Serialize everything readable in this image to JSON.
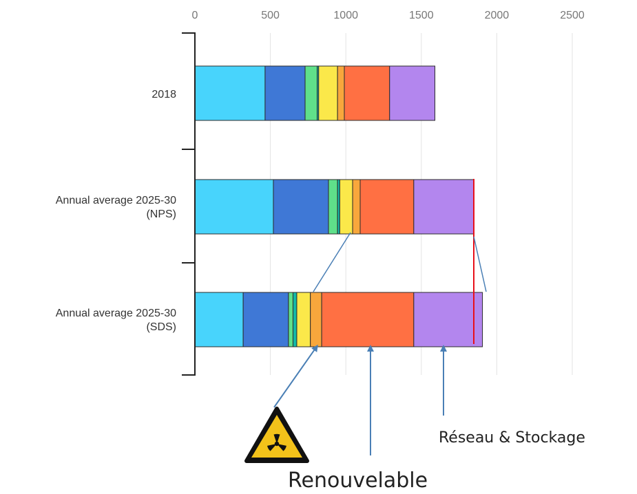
{
  "chart_data": {
    "type": "bar",
    "orientation": "horizontal",
    "stacked": true,
    "categories": [
      "2018",
      "Annual average 2025-30\n(NPS)",
      "Annual average 2025-30\n(SDS)"
    ],
    "xlim": [
      0,
      2500
    ],
    "xticks": [
      "0",
      "500",
      "1000",
      "1500",
      "2000",
      "2500"
    ],
    "grid": "vertical",
    "series": [
      {
        "color": "#48d4fc",
        "values": [
          465,
          520,
          320
        ]
      },
      {
        "color": "#3f78d6",
        "values": [
          265,
          365,
          300
        ]
      },
      {
        "color": "#5fe08a",
        "values": [
          80,
          60,
          30
        ]
      },
      {
        "color": "#14b8a6",
        "values": [
          10,
          15,
          25
        ]
      },
      {
        "color": "#fbe84a",
        "values": [
          125,
          85,
          90
        ]
      },
      {
        "color": "#f8a73c",
        "values": [
          45,
          50,
          75
        ]
      },
      {
        "color": "#ff7043",
        "values": [
          300,
          355,
          610
        ]
      },
      {
        "color": "#b386ee",
        "values": [
          300,
          400,
          455
        ]
      }
    ],
    "annotations": {
      "nuclear_icon": "radioactive-warning-icon",
      "renewable_label": "Renouvelable",
      "grid_storage_label": "Réseau & Stockage"
    }
  }
}
